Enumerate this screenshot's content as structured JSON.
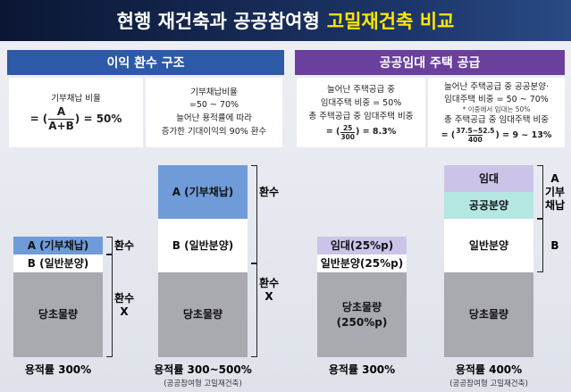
{
  "title": {
    "main": "현행 재건축과 공공참여형",
    "highlight": "고밀재건축 비교"
  },
  "panels": [
    {
      "header": "이익 환수 구조",
      "boxes": [
        {
          "lines": [
            "기부채납 비율"
          ],
          "formula": {
            "prefix": "= (",
            "numerator": "A",
            "denominator": "A+B",
            "suffix": ") = 50%"
          }
        },
        {
          "lines": [
            "기부채납비율",
            "=50 ~ 70%",
            "늘어난 용적률에 따라",
            "증가한 기대이익의 90% 환수"
          ]
        }
      ]
    },
    {
      "header": "공공임대 주택 공급",
      "boxes": [
        {
          "lines": [
            "늘어난 주택공급 중",
            "임대주택 비중 = 50%",
            "총 주택공급 중 임대주택 비중"
          ],
          "formula": {
            "prefix": "= (",
            "numerator": "25",
            "denominator": "300",
            "suffix": ") = 8.3%"
          }
        },
        {
          "lines": [
            "늘어난 주택공급 중 공공분양·",
            "임대주택 비중 = 50 ~ 70%",
            "* 이중에서 임대는 50%",
            "총 주택공급 중 임대주택 비중"
          ],
          "formula": {
            "prefix": "= (",
            "numerator": "37.5~52.5",
            "denominator": "400",
            "suffix": ") = 9 ~ 13%"
          }
        }
      ]
    }
  ],
  "diagrams": [
    {
      "blocks": [
        [
          "A (기부채납)"
        ],
        [
          "B (일반분양)"
        ],
        [
          "당초물량"
        ]
      ],
      "brackets": [
        [
          "환수"
        ],
        [
          "환수",
          "X"
        ]
      ],
      "caption": "용적률 300%"
    },
    {
      "blocks": [
        [
          "A (기부채납)"
        ],
        [
          "B (일반분양)"
        ],
        [
          "당초물량"
        ]
      ],
      "brackets": [
        [
          "환수"
        ],
        [
          "환수",
          "X"
        ]
      ],
      "caption": "용적률 300~500%",
      "note": "(공공참여형 고밀재건축)"
    },
    {
      "blocks": [
        [
          "임대(25%p)"
        ],
        [
          "일반분양(25%p)"
        ],
        [
          "당초물량",
          "(250%p)"
        ]
      ],
      "caption": "용적률 300%"
    },
    {
      "blocks": [
        [
          "임대"
        ],
        [
          "공공분양"
        ],
        [
          "일반분양"
        ],
        [
          "당초물량"
        ]
      ],
      "brackets": [
        [
          "A",
          "기부",
          "채납"
        ],
        [
          "B"
        ]
      ],
      "caption": "용적률 400%",
      "note": "(공공참여형 고밀재건축)"
    }
  ]
}
